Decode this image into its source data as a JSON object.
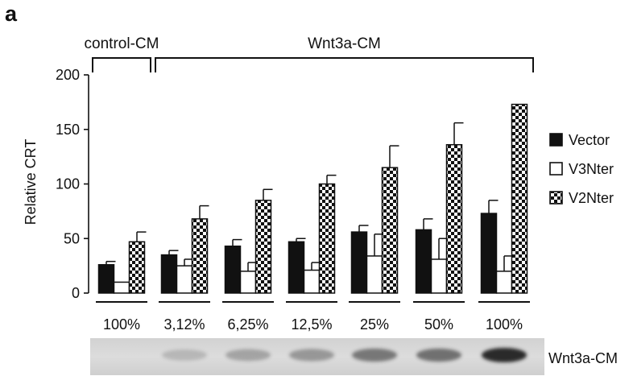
{
  "panel_label": "a",
  "groups": [
    {
      "label": "control-CM",
      "first": 0,
      "last": 0
    },
    {
      "label": "Wnt3a-CM",
      "first": 1,
      "last": 6
    }
  ],
  "blot_label": "Wnt3a-CM",
  "colors": {
    "vector": "#111111",
    "v3nter": "#ffffff",
    "v2nter": "checkerboard",
    "axis": "#111111"
  },
  "chart_data": {
    "type": "bar",
    "title": "",
    "xlabel": "",
    "ylabel": "Relative CRT",
    "ylim": [
      0,
      200
    ],
    "yticks": [
      0,
      50,
      100,
      150,
      200
    ],
    "categories": [
      "100%",
      "3,12%",
      "6,25%",
      "12,5%",
      "25%",
      "50%",
      "100%"
    ],
    "series": [
      {
        "name": "Vector",
        "key": "vector",
        "values": [
          26,
          35,
          43,
          47,
          56,
          58,
          73
        ],
        "errors": [
          3,
          4,
          6,
          3,
          6,
          10,
          12
        ]
      },
      {
        "name": "V3Nter",
        "key": "v3nter",
        "values": [
          10,
          25,
          20,
          21,
          34,
          31,
          20
        ],
        "errors": [
          0,
          6,
          8,
          7,
          20,
          19,
          14
        ]
      },
      {
        "name": "V2Nter",
        "key": "v2nter",
        "values": [
          47,
          68,
          85,
          100,
          115,
          136,
          173
        ],
        "errors": [
          9,
          12,
          10,
          8,
          20,
          20,
          0
        ]
      }
    ],
    "legend_position": "right",
    "grid": false
  }
}
